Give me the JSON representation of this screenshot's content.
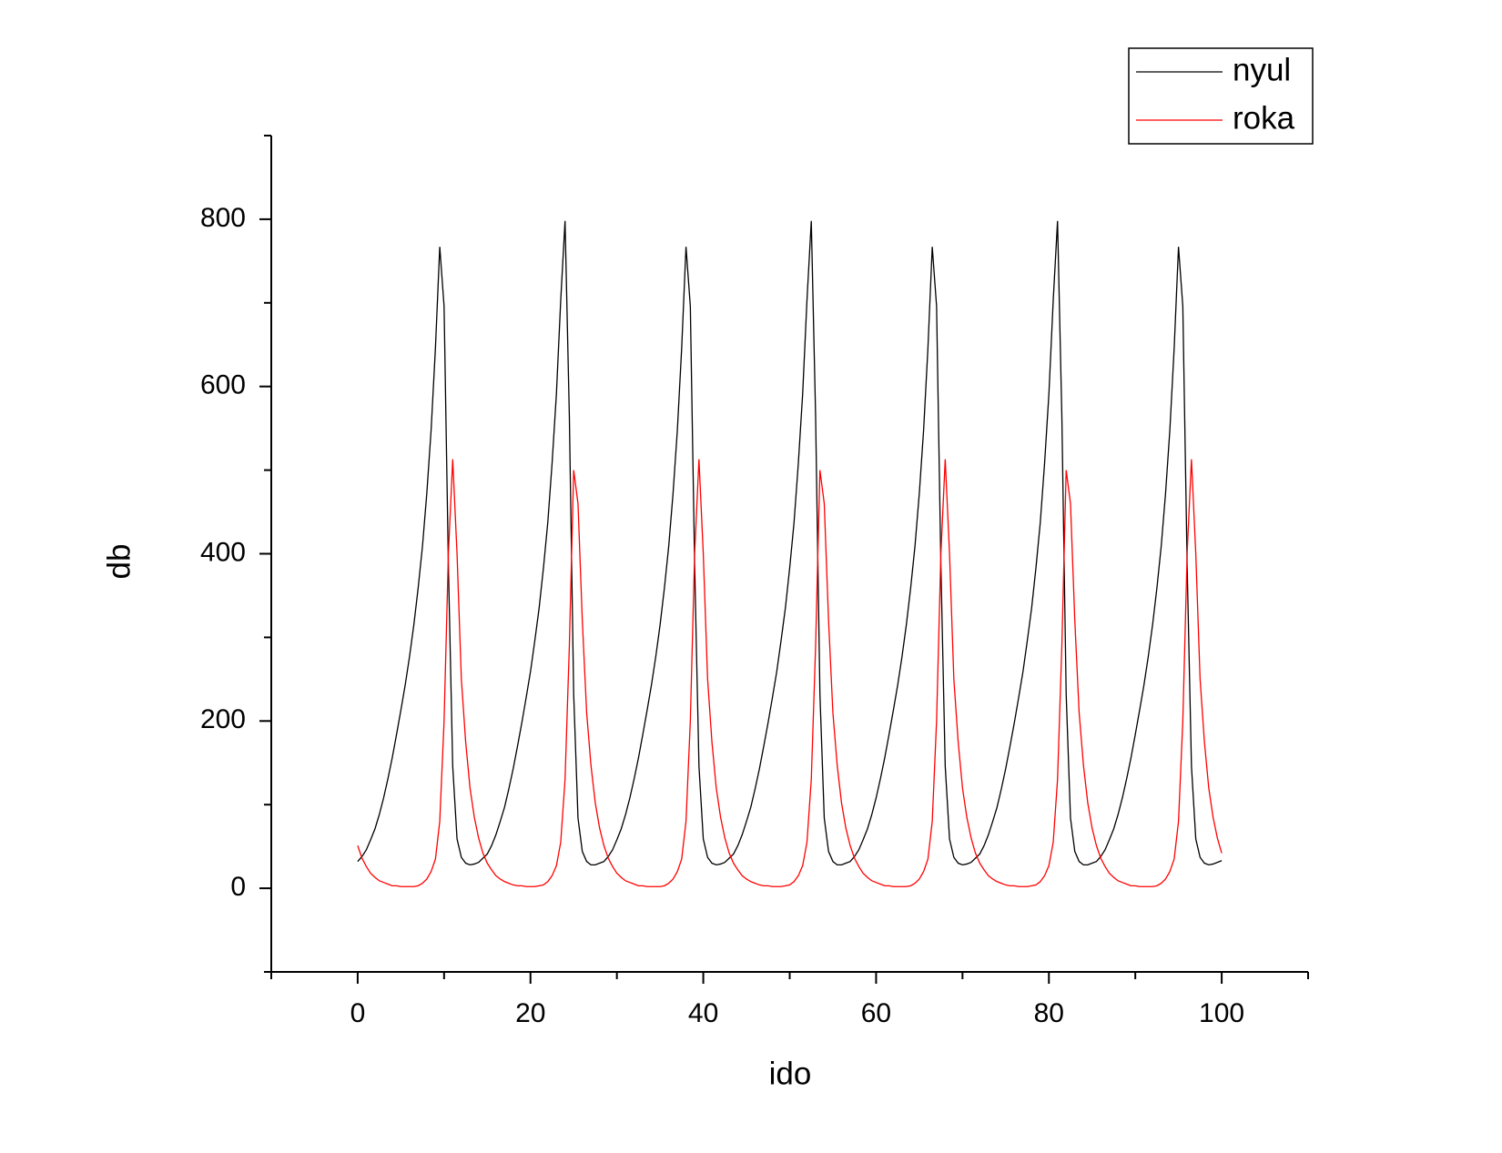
{
  "chart_data": {
    "type": "line",
    "x_label": "ido",
    "y_label": "db",
    "x": [
      0,
      0.5,
      1,
      1.5,
      2,
      2.5,
      3,
      3.5,
      4,
      4.5,
      5,
      5.5,
      6,
      6.5,
      7,
      7.5,
      8,
      8.5,
      9,
      9.5,
      10,
      10.5,
      11,
      11.5,
      12,
      12.5,
      13,
      13.5,
      14,
      14.5,
      15,
      15.5,
      16,
      16.5,
      17,
      17.5,
      18,
      18.5,
      19,
      19.5,
      20,
      20.5,
      21,
      21.5,
      22,
      22.5,
      23,
      23.5,
      24,
      24.5,
      25,
      25.5,
      26,
      26.5,
      27,
      27.5,
      28,
      28.5,
      29,
      29.5,
      30,
      30.5,
      31,
      31.5,
      32,
      32.5,
      33,
      33.5,
      34,
      34.5,
      35,
      35.5,
      36,
      36.5,
      37,
      37.5,
      38,
      38.5,
      39,
      39.5,
      40,
      40.5,
      41,
      41.5,
      42,
      42.5,
      43,
      43.5,
      44,
      44.5,
      45,
      45.5,
      46,
      46.5,
      47,
      47.5,
      48,
      48.5,
      49,
      49.5,
      50,
      50.5,
      51,
      51.5,
      52,
      52.5,
      53,
      53.5,
      54,
      54.5,
      55,
      55.5,
      56,
      56.5,
      57,
      57.5,
      58,
      58.5,
      59,
      59.5,
      60,
      60.5,
      61,
      61.5,
      62,
      62.5,
      63,
      63.5,
      64,
      64.5,
      65,
      65.5,
      66,
      66.5,
      67,
      67.5,
      68,
      68.5,
      69,
      69.5,
      70,
      70.5,
      71,
      71.5,
      72,
      72.5,
      73,
      73.5,
      74,
      74.5,
      75,
      75.5,
      76,
      76.5,
      77,
      77.5,
      78,
      78.5,
      79,
      79.5,
      80,
      80.5,
      81,
      81.5,
      82,
      82.5,
      83,
      83.5,
      84,
      84.5,
      85,
      85.5,
      86,
      86.5,
      87,
      87.5,
      88,
      88.5,
      89,
      89.5,
      90,
      90.5,
      91,
      91.5,
      92,
      92.5,
      93,
      93.5,
      94,
      94.5,
      95,
      95.5,
      96,
      96.5,
      97,
      97.5,
      98,
      98.5,
      99,
      99.5,
      100
    ],
    "series": [
      {
        "name": "nyul",
        "color": "#000000",
        "values": [
          32,
          38,
          46,
          58,
          71,
          88,
          108,
          131,
          156,
          184,
          213,
          243,
          277,
          315,
          359,
          409,
          472,
          548,
          646,
          767,
          696,
          386,
          146,
          59,
          37,
          30,
          28,
          29,
          31,
          36,
          41,
          51,
          64,
          80,
          97,
          119,
          143,
          170,
          198,
          228,
          259,
          296,
          335,
          383,
          437,
          508,
          591,
          703,
          798,
          564,
          232,
          84,
          44,
          32,
          28,
          28,
          30,
          32,
          38,
          46,
          58,
          71,
          88,
          108,
          131,
          156,
          184,
          213,
          243,
          277,
          315,
          359,
          409,
          472,
          548,
          646,
          767,
          696,
          386,
          146,
          59,
          37,
          30,
          28,
          29,
          31,
          36,
          41,
          51,
          64,
          80,
          97,
          119,
          143,
          170,
          198,
          228,
          259,
          296,
          335,
          383,
          437,
          508,
          591,
          703,
          798,
          564,
          232,
          84,
          44,
          32,
          28,
          28,
          30,
          32,
          38,
          46,
          58,
          71,
          88,
          108,
          131,
          156,
          184,
          213,
          243,
          277,
          315,
          359,
          409,
          472,
          548,
          646,
          767,
          696,
          386,
          146,
          59,
          37,
          30,
          28,
          29,
          31,
          36,
          41,
          51,
          64,
          80,
          97,
          119,
          143,
          170,
          198,
          228,
          259,
          296,
          335,
          383,
          437,
          508,
          591,
          703,
          798,
          564,
          232,
          84,
          44,
          32,
          28,
          28,
          30,
          32,
          38,
          46,
          58,
          71,
          88,
          108,
          131,
          156,
          184,
          213,
          243,
          277,
          315,
          359,
          409,
          472,
          548,
          646,
          767,
          696,
          386,
          146,
          59,
          37,
          30,
          28,
          29,
          31,
          33
        ]
      },
      {
        "name": "roka",
        "color": "#ff0000",
        "values": [
          51,
          36,
          26,
          18,
          13,
          9,
          7,
          5,
          3,
          3,
          2,
          2,
          2,
          2,
          3,
          6,
          11,
          20,
          35,
          80,
          200,
          400,
          513,
          400,
          250,
          175,
          120,
          85,
          60,
          42,
          30,
          22,
          15,
          11,
          8,
          6,
          4,
          3,
          3,
          2,
          2,
          2,
          3,
          4,
          8,
          15,
          27,
          55,
          130,
          290,
          500,
          460,
          320,
          210,
          147,
          102,
          72,
          51,
          36,
          26,
          18,
          13,
          9,
          7,
          5,
          3,
          3,
          2,
          2,
          2,
          2,
          3,
          6,
          11,
          20,
          35,
          80,
          200,
          400,
          513,
          400,
          250,
          175,
          120,
          85,
          60,
          42,
          30,
          22,
          15,
          11,
          8,
          6,
          4,
          3,
          3,
          2,
          2,
          2,
          3,
          4,
          8,
          15,
          27,
          55,
          130,
          290,
          500,
          460,
          320,
          210,
          147,
          102,
          72,
          51,
          36,
          26,
          18,
          13,
          9,
          7,
          5,
          3,
          3,
          2,
          2,
          2,
          2,
          3,
          6,
          11,
          20,
          35,
          80,
          200,
          400,
          513,
          400,
          250,
          175,
          120,
          85,
          60,
          42,
          30,
          22,
          15,
          11,
          8,
          6,
          4,
          3,
          3,
          2,
          2,
          2,
          3,
          4,
          8,
          15,
          27,
          55,
          130,
          290,
          500,
          460,
          320,
          210,
          147,
          102,
          72,
          51,
          36,
          26,
          18,
          13,
          9,
          7,
          5,
          3,
          3,
          2,
          2,
          2,
          2,
          3,
          6,
          11,
          20,
          35,
          80,
          200,
          400,
          513,
          400,
          250,
          175,
          120,
          85,
          60,
          42
        ]
      }
    ],
    "xlim": [
      -10,
      110
    ],
    "ylim": [
      -100,
      900
    ],
    "xticks": [
      0,
      20,
      40,
      60,
      80,
      100
    ],
    "yticks": [
      0,
      200,
      400,
      600,
      800
    ],
    "xminorticks": [
      -10,
      10,
      30,
      50,
      70,
      90,
      110
    ],
    "yminorticks": [
      -100,
      100,
      300,
      500,
      700,
      900
    ],
    "grid": false,
    "legend": "top-right"
  }
}
